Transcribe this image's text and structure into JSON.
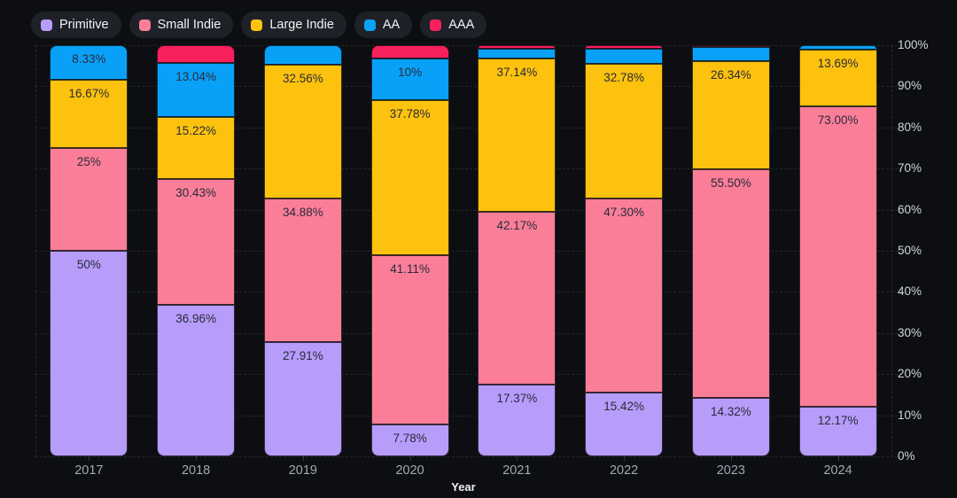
{
  "chart_data": {
    "type": "bar",
    "variant": "stacked-100-percent",
    "title": "",
    "xlabel": "Year",
    "ylabel": "",
    "ylim": [
      0,
      100
    ],
    "grid": "horizontal-dashed",
    "legend_position": "top-left",
    "categories": [
      "2017",
      "2018",
      "2019",
      "2020",
      "2021",
      "2022",
      "2023",
      "2024"
    ],
    "yticks": [
      "0%",
      "10%",
      "20%",
      "30%",
      "40%",
      "50%",
      "60%",
      "70%",
      "80%",
      "90%",
      "100%"
    ],
    "series": [
      {
        "name": "Primitive",
        "color": "#b79cfa",
        "values": [
          50,
          36.96,
          27.91,
          7.78,
          17.37,
          15.42,
          14.32,
          12.17
        ],
        "labels": [
          "50%",
          "36.96%",
          "27.91%",
          "7.78%",
          "17.37%",
          "15.42%",
          "14.32%",
          "12.17%"
        ]
      },
      {
        "name": "Small Indie",
        "color": "#fb7e99",
        "values": [
          25,
          30.43,
          34.88,
          41.11,
          42.17,
          47.3,
          55.5,
          73
        ],
        "labels": [
          "25%",
          "30.43%",
          "34.88%",
          "41.11%",
          "42.17%",
          "47.30%",
          "55.50%",
          "73.00%"
        ]
      },
      {
        "name": "Large Indie",
        "color": "#fdc20d",
        "values": [
          16.67,
          15.22,
          32.56,
          37.78,
          37.14,
          32.78,
          26.34,
          13.69
        ],
        "labels": [
          "16.67%",
          "15.22%",
          "32.56%",
          "37.78%",
          "37.14%",
          "32.78%",
          "26.34%",
          "13.69%"
        ]
      },
      {
        "name": "AA",
        "color": "#09a1f8",
        "values": [
          8.33,
          13.04,
          4.65,
          10,
          2.42,
          3.67,
          3.5,
          1.14
        ],
        "labels": [
          "8.33%",
          "13.04%",
          "",
          "10%",
          "",
          "",
          "",
          ""
        ]
      },
      {
        "name": "AAA",
        "color": "#f9205e",
        "values": [
          0,
          4.35,
          0,
          3.33,
          0.9,
          0.83,
          0.34,
          0
        ],
        "labels": [
          "",
          "",
          "",
          "",
          "",
          "",
          "",
          ""
        ]
      }
    ],
    "colors": {
      "background": "#0c0e12",
      "legend_pill": "#1e2127",
      "segment_label": "#272b3a",
      "axis_tick": "#d2d5da",
      "x_tick": "#a2a7b1"
    }
  }
}
